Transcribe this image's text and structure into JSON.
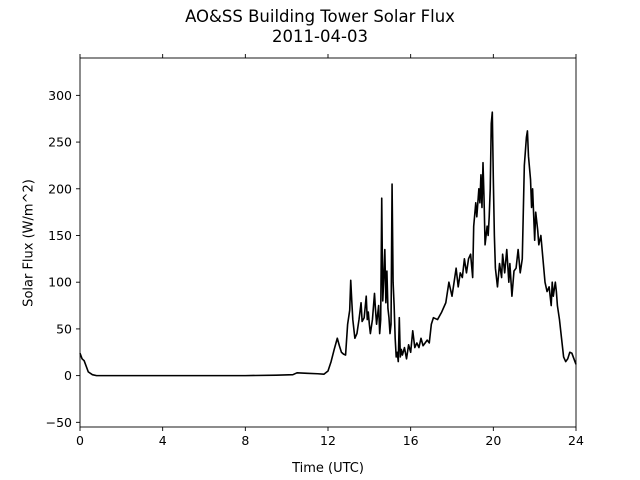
{
  "chart_data": {
    "type": "line",
    "title": "AO&SS Building Tower Solar Flux",
    "subtitle": "2011-04-03",
    "xlabel": "Time (UTC)",
    "ylabel": "Solar Flux (W/m^2)",
    "xlim": [
      0,
      24
    ],
    "ylim": [
      -55,
      340
    ],
    "xticks": [
      0,
      4,
      8,
      12,
      16,
      20,
      24
    ],
    "yticks": [
      -50,
      0,
      50,
      100,
      150,
      200,
      250,
      300
    ],
    "grid": false,
    "line_color": "#000000",
    "series": [
      {
        "points": [
          [
            0.0,
            24
          ],
          [
            0.1,
            18
          ],
          [
            0.2,
            16
          ],
          [
            0.3,
            10
          ],
          [
            0.4,
            4
          ],
          [
            0.6,
            1
          ],
          [
            0.8,
            0
          ],
          [
            1.2,
            0
          ],
          [
            4.0,
            0
          ],
          [
            8.0,
            0
          ],
          [
            9.5,
            0.5
          ],
          [
            10.3,
            1
          ],
          [
            10.5,
            3
          ],
          [
            11.0,
            2.5
          ],
          [
            11.5,
            2
          ],
          [
            11.8,
            1.5
          ],
          [
            12.0,
            5
          ],
          [
            12.15,
            15
          ],
          [
            12.3,
            28
          ],
          [
            12.45,
            40
          ],
          [
            12.55,
            32
          ],
          [
            12.65,
            25
          ],
          [
            12.75,
            23
          ],
          [
            12.85,
            22
          ],
          [
            12.95,
            55
          ],
          [
            13.05,
            70
          ],
          [
            13.1,
            102
          ],
          [
            13.15,
            80
          ],
          [
            13.2,
            60
          ],
          [
            13.3,
            40
          ],
          [
            13.4,
            45
          ],
          [
            13.5,
            60
          ],
          [
            13.6,
            78
          ],
          [
            13.65,
            58
          ],
          [
            13.75,
            62
          ],
          [
            13.85,
            85
          ],
          [
            13.9,
            60
          ],
          [
            13.95,
            68
          ],
          [
            14.0,
            55
          ],
          [
            14.05,
            45
          ],
          [
            14.15,
            60
          ],
          [
            14.25,
            88
          ],
          [
            14.3,
            70
          ],
          [
            14.35,
            55
          ],
          [
            14.45,
            75
          ],
          [
            14.5,
            45
          ],
          [
            14.55,
            60
          ],
          [
            14.6,
            190
          ],
          [
            14.65,
            80
          ],
          [
            14.7,
            105
          ],
          [
            14.75,
            135
          ],
          [
            14.8,
            78
          ],
          [
            14.85,
            112
          ],
          [
            14.9,
            72
          ],
          [
            14.95,
            62
          ],
          [
            15.0,
            45
          ],
          [
            15.05,
            55
          ],
          [
            15.1,
            205
          ],
          [
            15.15,
            100
          ],
          [
            15.2,
            75
          ],
          [
            15.25,
            40
          ],
          [
            15.3,
            20
          ],
          [
            15.35,
            25
          ],
          [
            15.4,
            15
          ],
          [
            15.45,
            62
          ],
          [
            15.5,
            20
          ],
          [
            15.55,
            28
          ],
          [
            15.6,
            22
          ],
          [
            15.7,
            30
          ],
          [
            15.8,
            18
          ],
          [
            15.9,
            33
          ],
          [
            16.0,
            25
          ],
          [
            16.1,
            48
          ],
          [
            16.2,
            30
          ],
          [
            16.3,
            35
          ],
          [
            16.4,
            30
          ],
          [
            16.5,
            40
          ],
          [
            16.6,
            32
          ],
          [
            16.8,
            38
          ],
          [
            16.9,
            35
          ],
          [
            17.0,
            55
          ],
          [
            17.1,
            62
          ],
          [
            17.3,
            60
          ],
          [
            17.5,
            68
          ],
          [
            17.7,
            78
          ],
          [
            17.85,
            100
          ],
          [
            18.0,
            85
          ],
          [
            18.1,
            100
          ],
          [
            18.2,
            115
          ],
          [
            18.3,
            95
          ],
          [
            18.4,
            110
          ],
          [
            18.5,
            105
          ],
          [
            18.6,
            125
          ],
          [
            18.7,
            110
          ],
          [
            18.8,
            125
          ],
          [
            18.9,
            130
          ],
          [
            19.0,
            105
          ],
          [
            19.05,
            160
          ],
          [
            19.15,
            185
          ],
          [
            19.2,
            170
          ],
          [
            19.3,
            200
          ],
          [
            19.35,
            185
          ],
          [
            19.4,
            215
          ],
          [
            19.45,
            180
          ],
          [
            19.5,
            228
          ],
          [
            19.55,
            190
          ],
          [
            19.6,
            140
          ],
          [
            19.7,
            160
          ],
          [
            19.75,
            150
          ],
          [
            19.8,
            170
          ],
          [
            19.85,
            200
          ],
          [
            19.9,
            270
          ],
          [
            19.95,
            282
          ],
          [
            20.0,
            210
          ],
          [
            20.05,
            150
          ],
          [
            20.1,
            115
          ],
          [
            20.2,
            95
          ],
          [
            20.3,
            120
          ],
          [
            20.4,
            105
          ],
          [
            20.45,
            130
          ],
          [
            20.55,
            110
          ],
          [
            20.65,
            135
          ],
          [
            20.75,
            100
          ],
          [
            20.8,
            120
          ],
          [
            20.9,
            85
          ],
          [
            21.0,
            112
          ],
          [
            21.1,
            115
          ],
          [
            21.2,
            135
          ],
          [
            21.3,
            110
          ],
          [
            21.4,
            125
          ],
          [
            21.5,
            225
          ],
          [
            21.6,
            255
          ],
          [
            21.65,
            262
          ],
          [
            21.7,
            235
          ],
          [
            21.8,
            210
          ],
          [
            21.85,
            180
          ],
          [
            21.9,
            200
          ],
          [
            22.0,
            145
          ],
          [
            22.05,
            175
          ],
          [
            22.15,
            155
          ],
          [
            22.2,
            140
          ],
          [
            22.3,
            150
          ],
          [
            22.4,
            125
          ],
          [
            22.5,
            100
          ],
          [
            22.6,
            90
          ],
          [
            22.7,
            95
          ],
          [
            22.8,
            75
          ],
          [
            22.85,
            100
          ],
          [
            22.9,
            85
          ],
          [
            23.0,
            100
          ],
          [
            23.05,
            90
          ],
          [
            23.1,
            75
          ],
          [
            23.2,
            60
          ],
          [
            23.3,
            40
          ],
          [
            23.4,
            20
          ],
          [
            23.5,
            15
          ],
          [
            23.6,
            18
          ],
          [
            23.7,
            25
          ],
          [
            23.8,
            24
          ],
          [
            23.9,
            18
          ],
          [
            24.0,
            12
          ]
        ]
      }
    ]
  }
}
